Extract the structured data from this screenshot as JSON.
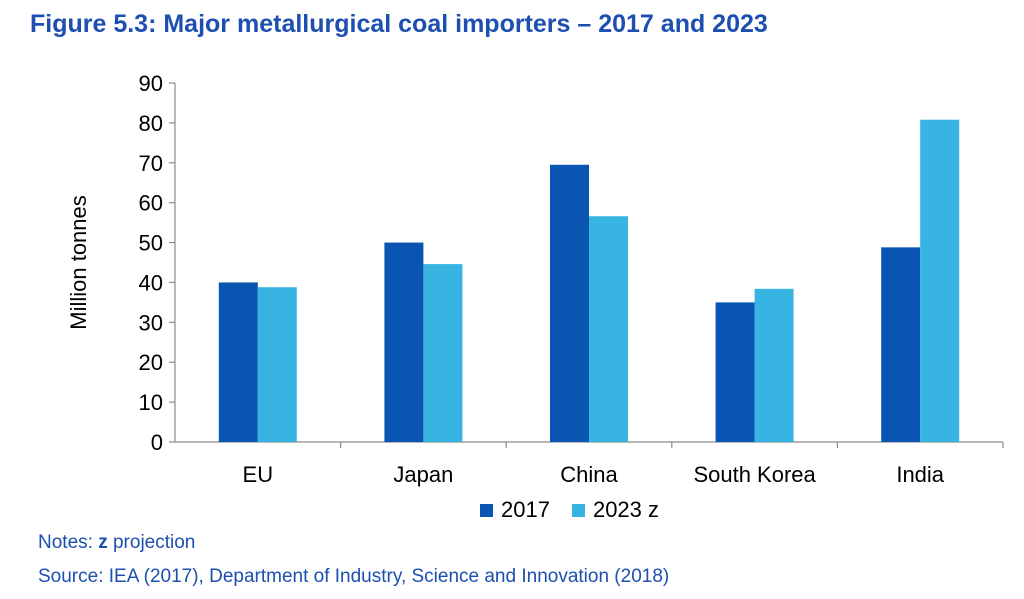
{
  "title": "Figure 5.3: Major metallurgical coal importers – 2017 and 2023",
  "notes": {
    "label": "Notes:",
    "z": "z",
    "text": "projection"
  },
  "source": "Source: IEA (2017), Department of Industry, Science and Innovation (2018)",
  "colors": {
    "s2017": "#0a55b2",
    "s2023": "#38b4e3",
    "text_blue": "#1c4fb0"
  },
  "chart_data": {
    "type": "bar",
    "categories": [
      "EU",
      "Japan",
      "China",
      "South Korea",
      "India"
    ],
    "series": [
      {
        "name": "2017",
        "values": [
          40,
          50,
          69.5,
          35,
          48.8
        ]
      },
      {
        "name": "2023 z",
        "values": [
          38.8,
          44.6,
          56.6,
          38.4,
          80.8
        ]
      }
    ],
    "ylabel": "Million tonnes",
    "xlabel": "",
    "ylim": [
      0,
      90
    ],
    "yticks": [
      0,
      10,
      20,
      30,
      40,
      50,
      60,
      70,
      80,
      90
    ],
    "legend": "bottom",
    "grid": false
  }
}
